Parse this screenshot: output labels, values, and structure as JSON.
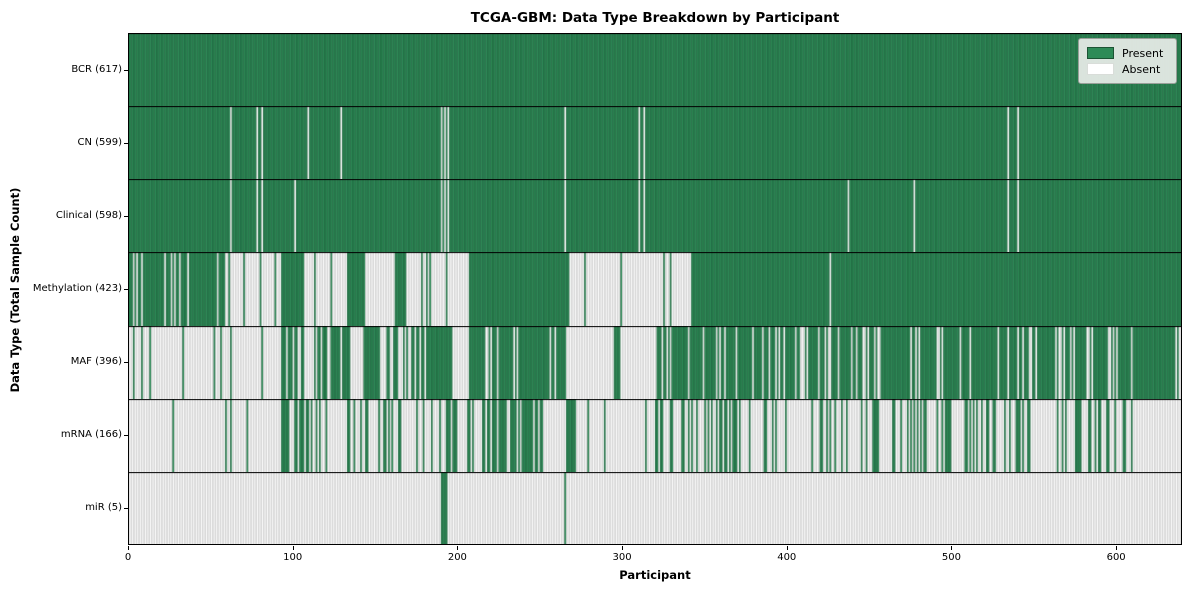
{
  "chart_data": {
    "type": "heatmap",
    "title": "TCGA-GBM: Data Type Breakdown by Participant",
    "xlabel": "Participant",
    "ylabel": "Data Type (Total Sample Count)",
    "xlim": [
      0,
      640
    ],
    "xticks": [
      0,
      100,
      200,
      300,
      400,
      500,
      600
    ],
    "grid": false,
    "legend_position": "upper right",
    "legend": [
      {
        "label": "Present",
        "color": "#2e8b57"
      },
      {
        "label": "Absent",
        "color": "#ffffff"
      }
    ],
    "colors": {
      "present": "#2e8b57",
      "present_edge": "rgba(10,45,28,0.55)",
      "absent": "#ffffff",
      "absent_edge": "rgba(60,60,60,0.40)",
      "row_separator": "#000000"
    },
    "rows": [
      {
        "name": "BCR",
        "count": 617,
        "label": "BCR (617)",
        "segments": [
          [
            0,
            640,
            "p",
            1
          ]
        ],
        "absent_at": []
      },
      {
        "name": "CN",
        "count": 599,
        "label": "CN (599)",
        "segments": [
          [
            0,
            640,
            "p",
            1
          ]
        ],
        "absent_at": [
          62,
          78,
          81,
          109,
          129,
          190,
          192,
          194,
          265,
          310,
          313,
          534,
          540
        ]
      },
      {
        "name": "Clinical",
        "count": 598,
        "label": "Clinical (598)",
        "segments": [
          [
            0,
            640,
            "p",
            1
          ]
        ],
        "absent_at": [
          62,
          78,
          81,
          101,
          190,
          192,
          194,
          265,
          310,
          313,
          437,
          477,
          534,
          540
        ]
      },
      {
        "name": "Methylation",
        "count": 423,
        "label": "Methylation (423)",
        "segments": [
          [
            0,
            60,
            "m",
            0.78
          ],
          [
            60,
            93,
            "m",
            0.12
          ],
          [
            93,
            107,
            "p",
            1
          ],
          [
            107,
            133,
            "m",
            0.1
          ],
          [
            133,
            144,
            "p",
            1
          ],
          [
            144,
            162,
            "a",
            0
          ],
          [
            162,
            169,
            "p",
            1
          ],
          [
            169,
            198,
            "m",
            0.1
          ],
          [
            198,
            207,
            "a",
            0
          ],
          [
            207,
            268,
            "p",
            1
          ],
          [
            268,
            342,
            "m",
            0.03
          ],
          [
            342,
            426,
            "p",
            1
          ],
          [
            426,
            427,
            "a",
            0
          ],
          [
            427,
            640,
            "p",
            1
          ]
        ],
        "absent_at": []
      },
      {
        "name": "MAF",
        "count": 396,
        "label": "MAF (396)",
        "segments": [
          [
            0,
            93,
            "m",
            0.08
          ],
          [
            93,
            107,
            "m",
            0.7
          ],
          [
            107,
            123,
            "m",
            0.5
          ],
          [
            123,
            135,
            "m",
            0.7
          ],
          [
            135,
            143,
            "a",
            0
          ],
          [
            143,
            152,
            "p",
            1
          ],
          [
            152,
            162,
            "m",
            0.4
          ],
          [
            162,
            184,
            "m",
            0.7
          ],
          [
            184,
            197,
            "p",
            1
          ],
          [
            197,
            207,
            "a",
            0
          ],
          [
            207,
            266,
            "m",
            0.85
          ],
          [
            266,
            295,
            "a",
            0
          ],
          [
            295,
            299,
            "p",
            1
          ],
          [
            299,
            321,
            "a",
            0
          ],
          [
            321,
            640,
            "m",
            0.85
          ]
        ],
        "absent_at": [
          324,
          340,
          357,
          359,
          362,
          385,
          405,
          408,
          426,
          442,
          446,
          449,
          491,
          494,
          543,
          563,
          566,
          574
        ]
      },
      {
        "name": "mRNA",
        "count": 166,
        "label": "mRNA (166)",
        "segments": [
          [
            0,
            27,
            "a",
            0
          ],
          [
            27,
            34,
            "m",
            0.3
          ],
          [
            34,
            93,
            "m",
            0.04
          ],
          [
            93,
            107,
            "m",
            0.6
          ],
          [
            107,
            143,
            "m",
            0.25
          ],
          [
            143,
            162,
            "m",
            0.45
          ],
          [
            162,
            184,
            "m",
            0.25
          ],
          [
            184,
            207,
            "m",
            0.35
          ],
          [
            207,
            225,
            "m",
            0.6
          ],
          [
            225,
            252,
            "m",
            0.8
          ],
          [
            252,
            266,
            "a",
            0
          ],
          [
            266,
            272,
            "p",
            1
          ],
          [
            272,
            320,
            "m",
            0.06
          ],
          [
            320,
            617,
            "m",
            0.32
          ],
          [
            617,
            640,
            "a",
            0
          ]
        ],
        "absent_at": []
      },
      {
        "name": "miR",
        "count": 5,
        "label": "miR (5)",
        "segments": [
          [
            0,
            190,
            "a",
            0
          ],
          [
            190,
            194,
            "p",
            1
          ],
          [
            194,
            265,
            "a",
            0
          ],
          [
            265,
            266,
            "p",
            1
          ],
          [
            266,
            640,
            "a",
            0
          ]
        ],
        "absent_at": []
      }
    ]
  }
}
